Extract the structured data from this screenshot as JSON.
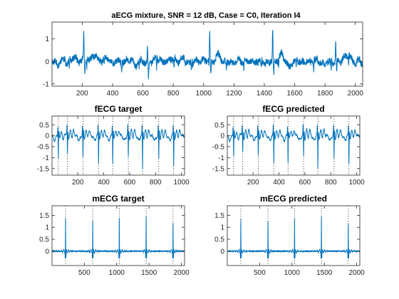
{
  "chart_data": [
    {
      "type": "line",
      "title": "aECG mixture, SNR = 12 dB, Case = C0, Iteration I4",
      "xlim": [
        1,
        2048
      ],
      "ylim": [
        -1.1,
        1.75
      ],
      "xticks": [
        200,
        400,
        600,
        800,
        1000,
        1200,
        1400,
        1600,
        1800,
        2000
      ],
      "yticks": [
        -1,
        0,
        1
      ],
      "grid": false,
      "color": "#0072BD",
      "mqrs": [
        210,
        630,
        1040,
        1455,
        1870
      ],
      "mqrs_peak": [
        1.3,
        0.65,
        1.25,
        1.4,
        0.9
      ],
      "fqrs": [
        115,
        230,
        345,
        460,
        575,
        690,
        805,
        920,
        1035,
        1150,
        1265,
        1380,
        1495,
        1610,
        1725,
        1840,
        1955
      ]
    },
    {
      "type": "line",
      "title": "fECG target",
      "xlim": [
        1,
        1024
      ],
      "ylim": [
        -1.8,
        0.9
      ],
      "xticks": [
        200,
        400,
        600,
        800,
        1000
      ],
      "yticks": [
        -1.5,
        -1,
        -0.5,
        0,
        0.5
      ],
      "grid": false,
      "color": "#0072BD",
      "fqrs": [
        50,
        120,
        240,
        360,
        470,
        590,
        700,
        825,
        940
      ],
      "qrs_depth": [
        -1.0,
        -0.8,
        -1.0,
        -1.25,
        -1.25,
        -1.0,
        -1.55,
        -1.1,
        -1.35
      ]
    },
    {
      "type": "line",
      "title": "fECG predicted",
      "xlim": [
        1,
        1024
      ],
      "ylim": [
        -1.8,
        0.9
      ],
      "xticks": [
        200,
        400,
        600,
        800,
        1000
      ],
      "yticks": [
        -1.5,
        -1,
        -0.5,
        0,
        0.5
      ],
      "grid": false,
      "color": "#0072BD",
      "fqrs": [
        50,
        120,
        240,
        360,
        470,
        590,
        700,
        825,
        940
      ],
      "qrs_depth": [
        -0.95,
        -0.75,
        -0.95,
        -1.2,
        -1.2,
        -1.0,
        -1.5,
        -1.1,
        -1.3
      ]
    },
    {
      "type": "line",
      "title": "mECG target",
      "xlim": [
        1,
        2048
      ],
      "ylim": [
        -0.6,
        1.9
      ],
      "xticks": [
        500,
        1000,
        1500,
        2000
      ],
      "yticks": [
        0,
        0.5,
        1,
        1.5
      ],
      "grid": false,
      "color": "#0072BD",
      "mqrs": [
        210,
        630,
        1040,
        1455,
        1870
      ],
      "mqrs_peak": [
        1.4,
        1.3,
        1.4,
        1.45,
        1.2
      ]
    },
    {
      "type": "line",
      "title": "mECG predicted",
      "xlim": [
        1,
        2048
      ],
      "ylim": [
        -0.6,
        1.9
      ],
      "xticks": [
        500,
        1000,
        1500,
        2000
      ],
      "yticks": [
        0,
        0.5,
        1,
        1.5
      ],
      "grid": false,
      "color": "#0072BD",
      "mqrs": [
        210,
        630,
        1040,
        1455,
        1870
      ],
      "mqrs_peak": [
        1.35,
        1.25,
        1.4,
        1.45,
        1.15
      ]
    }
  ]
}
